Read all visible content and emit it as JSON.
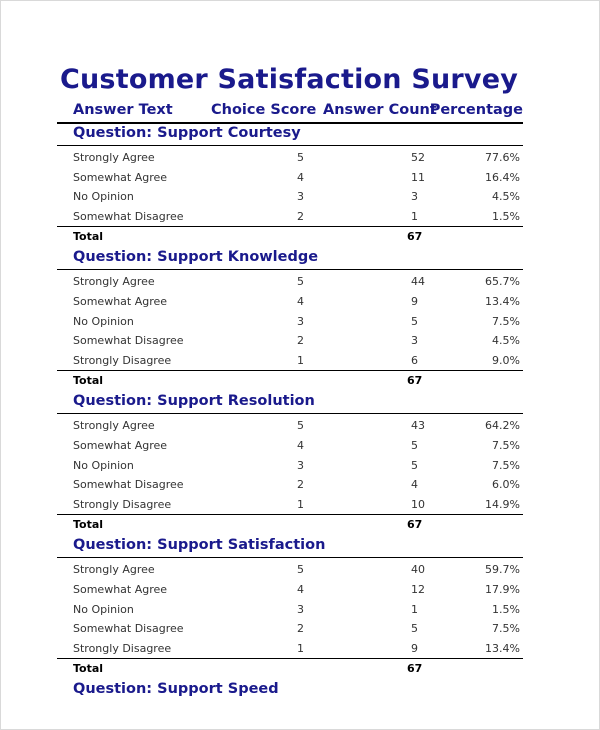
{
  "title": "Customer Satisfaction Survey",
  "headers": {
    "answer_text": "Answer Text",
    "choice_score": "Choice Score",
    "answer_count": "Answer Count",
    "percentage": "Percentage"
  },
  "total_label": "Total",
  "questions": [
    {
      "title": "Question: Support Courtesy",
      "rows": [
        {
          "label": "Strongly Agree",
          "score": "5",
          "count": "52",
          "pct": "77.6%"
        },
        {
          "label": "Somewhat Agree",
          "score": "4",
          "count": "11",
          "pct": "16.4%"
        },
        {
          "label": "No Opinion",
          "score": "3",
          "count": "3",
          "pct": "4.5%"
        },
        {
          "label": "Somewhat Disagree",
          "score": "2",
          "count": "1",
          "pct": "1.5%"
        }
      ],
      "total": "67"
    },
    {
      "title": "Question: Support Knowledge",
      "rows": [
        {
          "label": "Strongly Agree",
          "score": "5",
          "count": "44",
          "pct": "65.7%"
        },
        {
          "label": "Somewhat Agree",
          "score": "4",
          "count": "9",
          "pct": "13.4%"
        },
        {
          "label": "No Opinion",
          "score": "3",
          "count": "5",
          "pct": "7.5%"
        },
        {
          "label": "Somewhat Disagree",
          "score": "2",
          "count": "3",
          "pct": "4.5%"
        },
        {
          "label": "Strongly Disagree",
          "score": "1",
          "count": "6",
          "pct": "9.0%"
        }
      ],
      "total": "67"
    },
    {
      "title": "Question: Support Resolution",
      "rows": [
        {
          "label": "Strongly Agree",
          "score": "5",
          "count": "43",
          "pct": "64.2%"
        },
        {
          "label": "Somewhat Agree",
          "score": "4",
          "count": "5",
          "pct": "7.5%"
        },
        {
          "label": "No Opinion",
          "score": "3",
          "count": "5",
          "pct": "7.5%"
        },
        {
          "label": "Somewhat Disagree",
          "score": "2",
          "count": "4",
          "pct": "6.0%"
        },
        {
          "label": "Strongly Disagree",
          "score": "1",
          "count": "10",
          "pct": "14.9%"
        }
      ],
      "total": "67"
    },
    {
      "title": "Question: Support Satisfaction",
      "rows": [
        {
          "label": "Strongly Agree",
          "score": "5",
          "count": "40",
          "pct": "59.7%"
        },
        {
          "label": "Somewhat Agree",
          "score": "4",
          "count": "12",
          "pct": "17.9%"
        },
        {
          "label": "No Opinion",
          "score": "3",
          "count": "1",
          "pct": "1.5%"
        },
        {
          "label": "Somewhat Disagree",
          "score": "2",
          "count": "5",
          "pct": "7.5%"
        },
        {
          "label": "Strongly Disagree",
          "score": "1",
          "count": "9",
          "pct": "13.4%"
        }
      ],
      "total": "67"
    },
    {
      "title": "Question: Support Speed",
      "rows": [],
      "total": null
    }
  ]
}
